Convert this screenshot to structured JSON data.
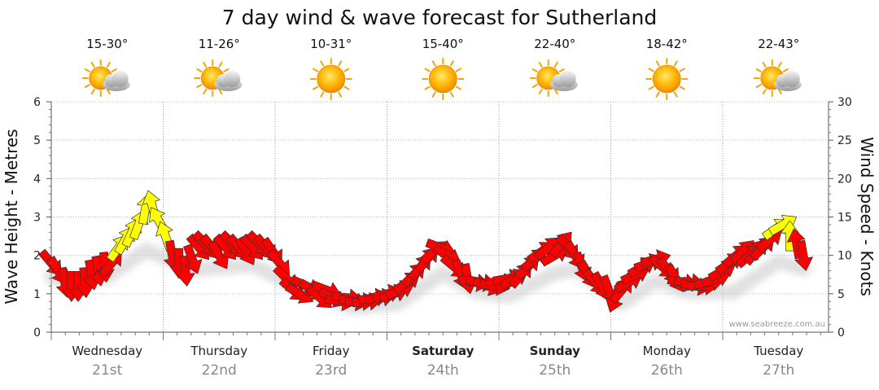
{
  "title": "7 day wind & wave forecast for Sutherland",
  "watermark": "www.seabreeze.com.au",
  "days": [
    {
      "name": "Wednesday",
      "date": "21st",
      "temp": "15-30°",
      "icon": "partly-cloudy-icon",
      "bold": false
    },
    {
      "name": "Thursday",
      "date": "22nd",
      "temp": "11-26°",
      "icon": "partly-cloudy-icon",
      "bold": false
    },
    {
      "name": "Friday",
      "date": "23rd",
      "temp": "10-31°",
      "icon": "sun-icon",
      "bold": false
    },
    {
      "name": "Saturday",
      "date": "24th",
      "temp": "15-40°",
      "icon": "sun-icon",
      "bold": true
    },
    {
      "name": "Sunday",
      "date": "25th",
      "temp": "22-40°",
      "icon": "partly-cloudy-icon",
      "bold": true
    },
    {
      "name": "Monday",
      "date": "26th",
      "temp": "18-42°",
      "icon": "sun-icon",
      "bold": false
    },
    {
      "name": "Tuesday",
      "date": "27th",
      "temp": "22-43°",
      "icon": "partly-cloudy-icon",
      "bold": false
    }
  ],
  "chart_data": {
    "type": "line",
    "title": "7 day wind & wave forecast for Sutherland",
    "ylabel_left": "Wave Height - Metres",
    "ylabel_right": "Wind Speed - Knots",
    "ylim_left": [
      0,
      6
    ],
    "ylim_right": [
      0,
      30
    ],
    "yticks_left": [
      "0",
      "1",
      "2",
      "3",
      "4",
      "5",
      "6"
    ],
    "yticks_right": [
      "0",
      "5",
      "10",
      "15",
      "20",
      "25",
      "30"
    ],
    "grid": true,
    "x_unit": "days from start of Wednesday 21st",
    "colors": {
      "strong": "#ffff00",
      "moderate": "#ff0000",
      "outline": "#333333"
    },
    "wind_series": {
      "name": "Wind Speed - Knots",
      "points": [
        {
          "t": 0.0,
          "knots": 9.0,
          "dir": 140,
          "color": "#ff0000"
        },
        {
          "t": 0.06,
          "knots": 8.0,
          "dir": 150,
          "color": "#ff0000"
        },
        {
          "t": 0.12,
          "knots": 6.5,
          "dir": 170,
          "color": "#ff0000"
        },
        {
          "t": 0.18,
          "knots": 6.0,
          "dir": 180,
          "color": "#ff0000"
        },
        {
          "t": 0.24,
          "knots": 6.0,
          "dir": 180,
          "color": "#ff0000"
        },
        {
          "t": 0.3,
          "knots": 6.5,
          "dir": 175,
          "color": "#ff0000"
        },
        {
          "t": 0.36,
          "knots": 7.5,
          "dir": 170,
          "color": "#ff0000"
        },
        {
          "t": 0.42,
          "knots": 8.0,
          "dir": 170,
          "color": "#ff0000"
        },
        {
          "t": 0.48,
          "knots": 8.5,
          "dir": 175,
          "color": "#ff0000"
        },
        {
          "t": 0.54,
          "knots": 9.0,
          "dir": 40,
          "color": "#ff0000"
        },
        {
          "t": 0.6,
          "knots": 11.0,
          "dir": 35,
          "color": "#ffff00"
        },
        {
          "t": 0.66,
          "knots": 12.0,
          "dir": 30,
          "color": "#ffff00"
        },
        {
          "t": 0.72,
          "knots": 13.0,
          "dir": 25,
          "color": "#ffff00"
        },
        {
          "t": 0.78,
          "knots": 14.0,
          "dir": 20,
          "color": "#ffff00"
        },
        {
          "t": 0.84,
          "knots": 16.0,
          "dir": 10,
          "color": "#ffff00"
        },
        {
          "t": 0.9,
          "knots": 16.5,
          "dir": 345,
          "color": "#ffff00"
        },
        {
          "t": 0.96,
          "knots": 14.5,
          "dir": 330,
          "color": "#ffff00"
        },
        {
          "t": 1.02,
          "knots": 12.5,
          "dir": 340,
          "color": "#ffff00"
        },
        {
          "t": 1.08,
          "knots": 10.0,
          "dir": 170,
          "color": "#ff0000"
        },
        {
          "t": 1.14,
          "knots": 9.0,
          "dir": 180,
          "color": "#ff0000"
        },
        {
          "t": 1.2,
          "knots": 8.0,
          "dir": 175,
          "color": "#ff0000"
        },
        {
          "t": 1.26,
          "knots": 9.5,
          "dir": 160,
          "color": "#ff0000"
        },
        {
          "t": 1.32,
          "knots": 11.0,
          "dir": 140,
          "color": "#ff0000"
        },
        {
          "t": 1.38,
          "knots": 11.5,
          "dir": 135,
          "color": "#ff0000"
        },
        {
          "t": 1.44,
          "knots": 11.0,
          "dir": 140,
          "color": "#ff0000"
        },
        {
          "t": 1.5,
          "knots": 10.0,
          "dir": 150,
          "color": "#ff0000"
        },
        {
          "t": 1.56,
          "knots": 11.0,
          "dir": 140,
          "color": "#ff0000"
        },
        {
          "t": 1.62,
          "knots": 11.5,
          "dir": 135,
          "color": "#ff0000"
        },
        {
          "t": 1.68,
          "knots": 11.0,
          "dir": 140,
          "color": "#ff0000"
        },
        {
          "t": 1.74,
          "knots": 10.5,
          "dir": 150,
          "color": "#ff0000"
        },
        {
          "t": 1.8,
          "knots": 11.0,
          "dir": 140,
          "color": "#ff0000"
        },
        {
          "t": 1.86,
          "knots": 11.5,
          "dir": 135,
          "color": "#ff0000"
        },
        {
          "t": 1.92,
          "knots": 11.0,
          "dir": 140,
          "color": "#ff0000"
        },
        {
          "t": 1.98,
          "knots": 10.5,
          "dir": 145,
          "color": "#ff0000"
        },
        {
          "t": 2.04,
          "knots": 9.0,
          "dir": 140,
          "color": "#ff0000"
        },
        {
          "t": 2.1,
          "knots": 7.0,
          "dir": 135,
          "color": "#ff0000"
        },
        {
          "t": 2.16,
          "knots": 5.5,
          "dir": 130,
          "color": "#ff0000"
        },
        {
          "t": 2.22,
          "knots": 5.0,
          "dir": 120,
          "color": "#ff0000"
        },
        {
          "t": 2.28,
          "knots": 6.0,
          "dir": 115,
          "color": "#ff0000"
        },
        {
          "t": 2.34,
          "knots": 5.5,
          "dir": 120,
          "color": "#ff0000"
        },
        {
          "t": 2.4,
          "knots": 4.5,
          "dir": 130,
          "color": "#ff0000"
        },
        {
          "t": 2.46,
          "knots": 5.5,
          "dir": 110,
          "color": "#ff0000"
        },
        {
          "t": 2.52,
          "knots": 4.5,
          "dir": 115,
          "color": "#ff0000"
        },
        {
          "t": 2.58,
          "knots": 4.0,
          "dir": 100,
          "color": "#ff0000"
        },
        {
          "t": 2.64,
          "knots": 4.5,
          "dir": 95,
          "color": "#ff0000"
        },
        {
          "t": 2.7,
          "knots": 4.0,
          "dir": 100,
          "color": "#ff0000"
        },
        {
          "t": 2.76,
          "knots": 4.0,
          "dir": 90,
          "color": "#ff0000"
        },
        {
          "t": 2.82,
          "knots": 4.0,
          "dir": 85,
          "color": "#ff0000"
        },
        {
          "t": 2.88,
          "knots": 4.5,
          "dir": 80,
          "color": "#ff0000"
        },
        {
          "t": 2.94,
          "knots": 4.5,
          "dir": 80,
          "color": "#ff0000"
        },
        {
          "t": 3.0,
          "knots": 5.0,
          "dir": 75,
          "color": "#ff0000"
        },
        {
          "t": 3.06,
          "knots": 5.0,
          "dir": 70,
          "color": "#ff0000"
        },
        {
          "t": 3.12,
          "knots": 5.5,
          "dir": 65,
          "color": "#ff0000"
        },
        {
          "t": 3.18,
          "knots": 6.5,
          "dir": 55,
          "color": "#ff0000"
        },
        {
          "t": 3.24,
          "knots": 7.5,
          "dir": 45,
          "color": "#ff0000"
        },
        {
          "t": 3.3,
          "knots": 8.5,
          "dir": 40,
          "color": "#ff0000"
        },
        {
          "t": 3.36,
          "knots": 9.5,
          "dir": 40,
          "color": "#ff0000"
        },
        {
          "t": 3.42,
          "knots": 10.5,
          "dir": 50,
          "color": "#ff0000"
        },
        {
          "t": 3.48,
          "knots": 11.0,
          "dir": 110,
          "color": "#ff0000"
        },
        {
          "t": 3.54,
          "knots": 10.0,
          "dir": 120,
          "color": "#ff0000"
        },
        {
          "t": 3.6,
          "knots": 8.5,
          "dir": 130,
          "color": "#ff0000"
        },
        {
          "t": 3.66,
          "knots": 7.5,
          "dir": 160,
          "color": "#ff0000"
        },
        {
          "t": 3.72,
          "knots": 7.0,
          "dir": 170,
          "color": "#ff0000"
        },
        {
          "t": 3.78,
          "knots": 6.5,
          "dir": 100,
          "color": "#ff0000"
        },
        {
          "t": 3.84,
          "knots": 6.5,
          "dir": 100,
          "color": "#ff0000"
        },
        {
          "t": 3.9,
          "knots": 6.0,
          "dir": 110,
          "color": "#ff0000"
        },
        {
          "t": 3.96,
          "knots": 6.0,
          "dir": 100,
          "color": "#ff0000"
        },
        {
          "t": 4.02,
          "knots": 6.5,
          "dir": 90,
          "color": "#ff0000"
        },
        {
          "t": 4.08,
          "knots": 7.0,
          "dir": 80,
          "color": "#ff0000"
        },
        {
          "t": 4.14,
          "knots": 7.0,
          "dir": 60,
          "color": "#ff0000"
        },
        {
          "t": 4.2,
          "knots": 7.5,
          "dir": 40,
          "color": "#ff0000"
        },
        {
          "t": 4.26,
          "knots": 8.5,
          "dir": 45,
          "color": "#ff0000"
        },
        {
          "t": 4.32,
          "knots": 9.5,
          "dir": 50,
          "color": "#ff0000"
        },
        {
          "t": 4.38,
          "knots": 10.5,
          "dir": 55,
          "color": "#ff0000"
        },
        {
          "t": 4.44,
          "knots": 11.0,
          "dir": 50,
          "color": "#ff0000"
        },
        {
          "t": 4.5,
          "knots": 10.0,
          "dir": 60,
          "color": "#ff0000"
        },
        {
          "t": 4.56,
          "knots": 11.5,
          "dir": 40,
          "color": "#ff0000"
        },
        {
          "t": 4.62,
          "knots": 11.0,
          "dir": 140,
          "color": "#ff0000"
        },
        {
          "t": 4.68,
          "knots": 10.0,
          "dir": 150,
          "color": "#ff0000"
        },
        {
          "t": 4.74,
          "knots": 8.5,
          "dir": 160,
          "color": "#ff0000"
        },
        {
          "t": 4.8,
          "knots": 7.5,
          "dir": 150,
          "color": "#ff0000"
        },
        {
          "t": 4.86,
          "knots": 6.5,
          "dir": 140,
          "color": "#ff0000"
        },
        {
          "t": 4.92,
          "knots": 6.0,
          "dir": 150,
          "color": "#ff0000"
        },
        {
          "t": 4.98,
          "knots": 5.5,
          "dir": 160,
          "color": "#ff0000"
        },
        {
          "t": 5.04,
          "knots": 4.5,
          "dir": 200,
          "color": "#ff0000"
        },
        {
          "t": 5.1,
          "knots": 5.5,
          "dir": 40,
          "color": "#ff0000"
        },
        {
          "t": 5.16,
          "knots": 6.5,
          "dir": 60,
          "color": "#ff0000"
        },
        {
          "t": 5.22,
          "knots": 7.5,
          "dir": 65,
          "color": "#ff0000"
        },
        {
          "t": 5.28,
          "knots": 8.5,
          "dir": 60,
          "color": "#ff0000"
        },
        {
          "t": 5.34,
          "knots": 9.0,
          "dir": 70,
          "color": "#ff0000"
        },
        {
          "t": 5.4,
          "knots": 9.5,
          "dir": 75,
          "color": "#ff0000"
        },
        {
          "t": 5.46,
          "knots": 8.5,
          "dir": 130,
          "color": "#ff0000"
        },
        {
          "t": 5.52,
          "knots": 8.0,
          "dir": 140,
          "color": "#ff0000"
        },
        {
          "t": 5.58,
          "knots": 7.0,
          "dir": 150,
          "color": "#ff0000"
        },
        {
          "t": 5.64,
          "knots": 6.5,
          "dir": 100,
          "color": "#ff0000"
        },
        {
          "t": 5.7,
          "knots": 6.5,
          "dir": 95,
          "color": "#ff0000"
        },
        {
          "t": 5.76,
          "knots": 6.0,
          "dir": 100,
          "color": "#ff0000"
        },
        {
          "t": 5.82,
          "knots": 6.0,
          "dir": 90,
          "color": "#ff0000"
        },
        {
          "t": 5.88,
          "knots": 6.5,
          "dir": 80,
          "color": "#ff0000"
        },
        {
          "t": 5.94,
          "knots": 7.0,
          "dir": 70,
          "color": "#ff0000"
        },
        {
          "t": 6.0,
          "knots": 8.0,
          "dir": 60,
          "color": "#ff0000"
        },
        {
          "t": 6.06,
          "knots": 9.0,
          "dir": 55,
          "color": "#ff0000"
        },
        {
          "t": 6.12,
          "knots": 10.0,
          "dir": 50,
          "color": "#ff0000"
        },
        {
          "t": 6.18,
          "knots": 10.5,
          "dir": 45,
          "color": "#ff0000"
        },
        {
          "t": 6.24,
          "knots": 10.0,
          "dir": 50,
          "color": "#ff0000"
        },
        {
          "t": 6.3,
          "knots": 10.5,
          "dir": 40,
          "color": "#ff0000"
        },
        {
          "t": 6.36,
          "knots": 11.0,
          "dir": 45,
          "color": "#ff0000"
        },
        {
          "t": 6.42,
          "knots": 12.0,
          "dir": 50,
          "color": "#ff0000"
        },
        {
          "t": 6.48,
          "knots": 13.5,
          "dir": 55,
          "color": "#ffff00"
        },
        {
          "t": 6.54,
          "knots": 14.0,
          "dir": 60,
          "color": "#ffff00"
        },
        {
          "t": 6.6,
          "knots": 12.5,
          "dir": 0,
          "color": "#ffff00"
        },
        {
          "t": 6.66,
          "knots": 11.5,
          "dir": 350,
          "color": "#ff0000"
        },
        {
          "t": 6.72,
          "knots": 10.0,
          "dir": 170,
          "color": "#ff0000"
        }
      ]
    },
    "wave_series": {
      "name": "Wave Height - Metres",
      "points": [
        {
          "t": 0.0,
          "m": 1.7
        },
        {
          "t": 0.25,
          "m": 1.5
        },
        {
          "t": 0.5,
          "m": 1.7
        },
        {
          "t": 0.85,
          "m": 2.4
        },
        {
          "t": 1.0,
          "m": 2.2
        },
        {
          "t": 1.3,
          "m": 1.9
        },
        {
          "t": 1.8,
          "m": 2.0
        },
        {
          "t": 2.3,
          "m": 1.3
        },
        {
          "t": 2.7,
          "m": 0.9
        },
        {
          "t": 3.1,
          "m": 1.0
        },
        {
          "t": 3.5,
          "m": 1.8
        },
        {
          "t": 3.8,
          "m": 1.3
        },
        {
          "t": 4.1,
          "m": 1.2
        },
        {
          "t": 4.5,
          "m": 1.8
        },
        {
          "t": 4.7,
          "m": 1.9
        },
        {
          "t": 5.1,
          "m": 1.0
        },
        {
          "t": 5.4,
          "m": 1.6
        },
        {
          "t": 5.7,
          "m": 1.3
        },
        {
          "t": 6.1,
          "m": 1.3
        },
        {
          "t": 6.5,
          "m": 2.1
        },
        {
          "t": 6.72,
          "m": 1.9
        }
      ]
    }
  }
}
